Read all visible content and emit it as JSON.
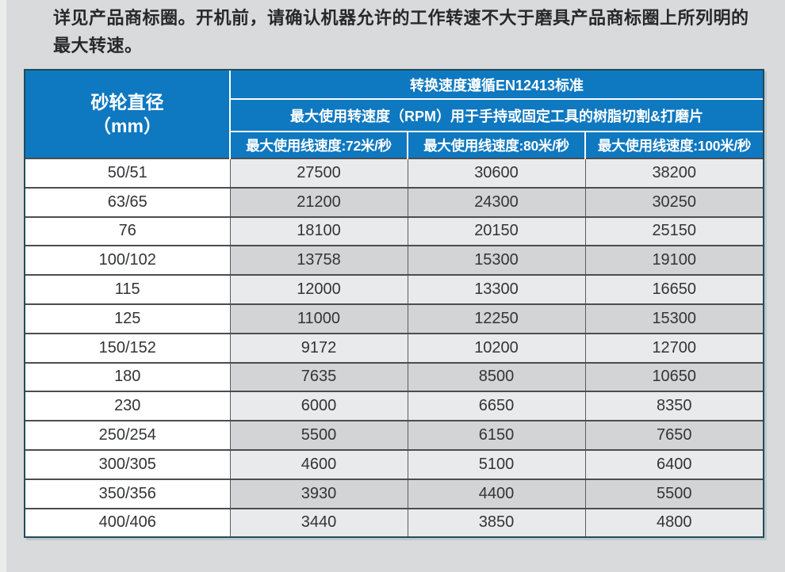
{
  "page": {
    "notice": "详见产品商标圈。开机前，请确认机器允许的工作转速不大于磨具产品商标圈上所列明的最大转速。"
  },
  "table": {
    "diameter_header_line1": "砂轮直径",
    "diameter_header_line2": "（mm）",
    "standard_header": "转换速度遵循EN12413标准",
    "usage_header": "最大使用转速度（RPM）用于手持或固定工具的树脂切割&打磨片",
    "speed_columns": [
      "最大使用线速度:72米/秒",
      "最大使用线速度:80米/秒",
      "最大使用线速度:100米/秒"
    ],
    "rows": [
      {
        "diameter": "50/51",
        "rpm72": "27500",
        "rpm80": "30600",
        "rpm100": "38200"
      },
      {
        "diameter": "63/65",
        "rpm72": "21200",
        "rpm80": "24300",
        "rpm100": "30250"
      },
      {
        "diameter": "76",
        "rpm72": "18100",
        "rpm80": "20150",
        "rpm100": "25150"
      },
      {
        "diameter": "100/102",
        "rpm72": "13758",
        "rpm80": "15300",
        "rpm100": "19100"
      },
      {
        "diameter": "115",
        "rpm72": "12000",
        "rpm80": "13300",
        "rpm100": "16650"
      },
      {
        "diameter": "125",
        "rpm72": "11000",
        "rpm80": "12250",
        "rpm100": "15300"
      },
      {
        "diameter": "150/152",
        "rpm72": "9172",
        "rpm80": "10200",
        "rpm100": "12700"
      },
      {
        "diameter": "180",
        "rpm72": "7635",
        "rpm80": "8500",
        "rpm100": "10650"
      },
      {
        "diameter": "230",
        "rpm72": "6000",
        "rpm80": "6650",
        "rpm100": "8350"
      },
      {
        "diameter": "250/254",
        "rpm72": "5500",
        "rpm80": "6150",
        "rpm100": "7650"
      },
      {
        "diameter": "300/305",
        "rpm72": "4600",
        "rpm80": "5100",
        "rpm100": "6400"
      },
      {
        "diameter": "350/356",
        "rpm72": "3930",
        "rpm80": "4400",
        "rpm100": "5500"
      },
      {
        "diameter": "400/406",
        "rpm72": "3440",
        "rpm80": "3850",
        "rpm100": "4800"
      }
    ],
    "colors": {
      "header_background": "#0e78c0",
      "header_text": "#ffffff",
      "row_light": "#e9eaec",
      "row_dark": "#d3d4d6",
      "diameter_column_background": "#ffffff",
      "grid_line": "#4c4d4f",
      "table_outer_border": "#234c59",
      "page_background": "#d9dadb",
      "body_text": "#282828"
    }
  }
}
